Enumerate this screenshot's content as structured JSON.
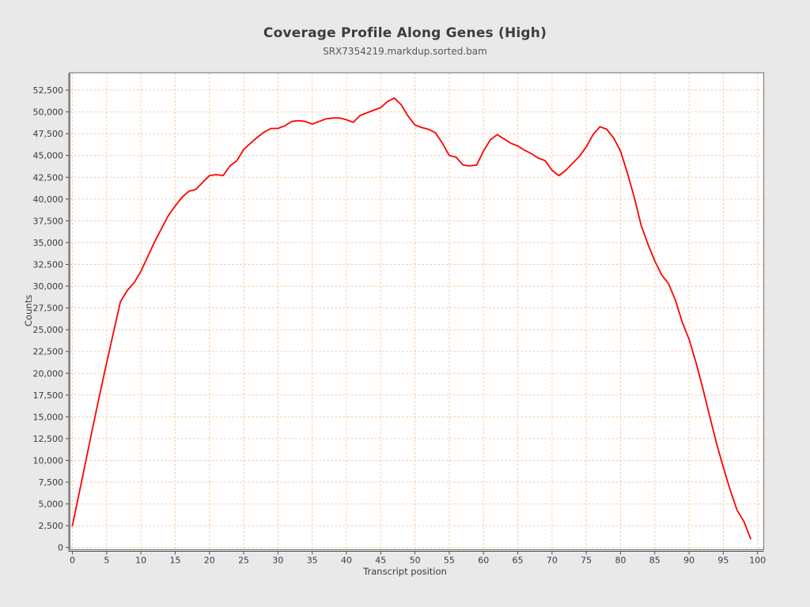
{
  "chart_data": {
    "type": "line",
    "title": "Coverage Profile Along Genes (High)",
    "subtitle": "SRX7354219.markdup.sorted.bam",
    "xlabel": "Transcript position",
    "ylabel": "Counts",
    "legend": "none",
    "grid": true,
    "grid_style": "dotted",
    "grid_color": "#f8c9a0",
    "series_color": "#ff0000",
    "plot_background": "#ffffff",
    "page_background": "#e9e9e9",
    "frame_color": "#808080",
    "axis_color": "#4d4d4d",
    "xlim": [
      0,
      100
    ],
    "ylim": [
      0,
      52500
    ],
    "xtick_step": 5,
    "ytick_step": 2500,
    "xticks": [
      0,
      5,
      10,
      15,
      20,
      25,
      30,
      35,
      40,
      45,
      50,
      55,
      60,
      65,
      70,
      75,
      80,
      85,
      90,
      95,
      100
    ],
    "yticks": [
      0,
      2500,
      5000,
      7500,
      10000,
      12500,
      15000,
      17500,
      20000,
      22500,
      25000,
      27500,
      30000,
      32500,
      35000,
      37500,
      40000,
      42500,
      45000,
      47500,
      50000,
      52500
    ],
    "x": [
      0,
      1,
      2,
      3,
      4,
      5,
      6,
      7,
      8,
      9,
      10,
      11,
      12,
      13,
      14,
      15,
      16,
      17,
      18,
      19,
      20,
      21,
      22,
      23,
      24,
      25,
      26,
      27,
      28,
      29,
      30,
      31,
      32,
      33,
      34,
      35,
      36,
      37,
      38,
      39,
      40,
      41,
      42,
      43,
      44,
      45,
      46,
      47,
      48,
      49,
      50,
      51,
      52,
      53,
      54,
      55,
      56,
      57,
      58,
      59,
      60,
      61,
      62,
      63,
      64,
      65,
      66,
      67,
      68,
      69,
      70,
      71,
      72,
      73,
      74,
      75,
      76,
      77,
      78,
      79,
      80,
      81,
      82,
      83,
      84,
      85,
      86,
      87,
      88,
      89,
      90,
      91,
      92,
      93,
      94,
      95,
      96,
      97,
      98,
      99
    ],
    "values": [
      2500,
      6300,
      10100,
      13900,
      17600,
      21200,
      24700,
      28200,
      29500,
      30400,
      31700,
      33400,
      35100,
      36600,
      38100,
      39200,
      40200,
      40900,
      41100,
      41900,
      42700,
      42800,
      42700,
      43800,
      44400,
      45700,
      46400,
      47100,
      47700,
      48100,
      48100,
      48400,
      48900,
      49000,
      48900,
      48600,
      48900,
      49200,
      49300,
      49300,
      49100,
      48800,
      49600,
      49900,
      50200,
      50500,
      51200,
      51600,
      50800,
      49500,
      48500,
      48200,
      48000,
      47600,
      46400,
      45000,
      44800,
      43900,
      43800,
      43900,
      45500,
      46800,
      47400,
      46900,
      46400,
      46100,
      45600,
      45200,
      44700,
      44400,
      43300,
      42700,
      43300,
      44100,
      44900,
      46000,
      47400,
      48300,
      48000,
      47000,
      45500,
      43000,
      40200,
      37000,
      34800,
      32900,
      31300,
      30300,
      28400,
      25900,
      23900,
      21300,
      18300,
      15100,
      12000,
      9200,
      6600,
      4300,
      3000,
      1000
    ]
  }
}
